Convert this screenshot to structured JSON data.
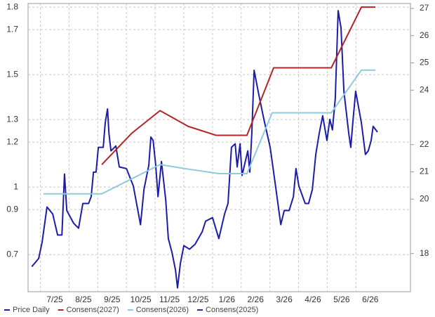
{
  "chart_data": {
    "type": "line",
    "xlim": [
      0.07,
      13.4
    ],
    "xticks": [
      {
        "value": 1,
        "label": "7/25"
      },
      {
        "value": 2,
        "label": "8/25"
      },
      {
        "value": 3,
        "label": "9/25"
      },
      {
        "value": 4,
        "label": "10/25"
      },
      {
        "value": 5,
        "label": "11/25"
      },
      {
        "value": 6,
        "label": "12/25"
      },
      {
        "value": 7,
        "label": "1/26"
      },
      {
        "value": 8,
        "label": "2/26"
      },
      {
        "value": 9,
        "label": "3/26"
      },
      {
        "value": 10,
        "label": "4/26"
      },
      {
        "value": 11,
        "label": "5/26"
      },
      {
        "value": 12,
        "label": "6/26"
      }
    ],
    "ylim": [
      0.535,
      1.816
    ],
    "yticks": [
      0.7,
      0.9,
      1.0,
      1.2,
      1.3,
      1.5,
      1.7,
      1.8
    ],
    "y2lim": [
      16.6,
      27.18
    ],
    "y2ticks": [
      18,
      20,
      21,
      22,
      24,
      25,
      26,
      27
    ],
    "grid": true,
    "legend": "bottom",
    "series": [
      {
        "name": "Price Daily",
        "color": "#1c1ca8",
        "axis": "y2",
        "x": [
          0.2,
          0.44,
          0.56,
          0.73,
          0.93,
          1.1,
          1.25,
          1.34,
          1.42,
          1.66,
          1.83,
          1.98,
          2.18,
          2.27,
          2.35,
          2.44,
          2.52,
          2.69,
          2.76,
          2.84,
          2.89,
          2.96,
          3.13,
          3.25,
          3.5,
          3.74,
          3.99,
          4.11,
          4.28,
          4.35,
          4.43,
          4.52,
          4.6,
          4.72,
          4.87,
          4.96,
          5.09,
          5.21,
          5.28,
          5.38,
          5.5,
          5.7,
          5.89,
          6.14,
          6.26,
          6.5,
          6.72,
          6.92,
          7.04,
          7.16,
          7.29,
          7.36,
          7.46,
          7.53,
          7.73,
          7.8,
          7.87,
          7.95,
          8.02,
          8.09,
          8.29,
          8.51,
          8.68,
          8.88,
          9.0,
          9.17,
          9.32,
          9.41,
          9.51,
          9.73,
          9.85,
          9.98,
          10.1,
          10.22,
          10.34,
          10.49,
          10.59,
          10.68,
          10.78,
          10.88,
          10.98,
          11.08,
          11.25,
          11.32,
          11.39,
          11.49,
          11.69,
          11.83,
          11.93,
          12.03,
          12.1,
          12.25
        ],
        "values": [
          17.52,
          17.82,
          18.42,
          19.71,
          19.45,
          18.68,
          18.68,
          20.92,
          19.58,
          19.11,
          18.93,
          19.84,
          19.84,
          20.09,
          20.99,
          20.99,
          21.9,
          21.9,
          22.8,
          23.31,
          22.41,
          21.77,
          21.95,
          21.18,
          21.12,
          20.48,
          19.06,
          20.35,
          21.25,
          22.28,
          22.15,
          21.25,
          20.09,
          21.38,
          19.96,
          18.55,
          18.03,
          17.39,
          16.74,
          17.64,
          18.29,
          18.16,
          18.34,
          18.8,
          19.19,
          19.32,
          18.55,
          19.45,
          19.84,
          21.9,
          22.03,
          21.18,
          22.03,
          20.87,
          21.77,
          20.99,
          22.41,
          24.73,
          24.35,
          23.96,
          22.93,
          21.9,
          20.61,
          19.06,
          19.58,
          19.58,
          20.09,
          21.12,
          20.48,
          19.84,
          19.84,
          20.35,
          21.64,
          22.41,
          23.06,
          22.15,
          22.93,
          22.54,
          23.7,
          26.92,
          26.28,
          23.96,
          22.41,
          21.9,
          22.8,
          23.96,
          22.8,
          21.64,
          21.77,
          22.15,
          22.67,
          22.46
        ]
      },
      {
        "name": "Consens(2027)",
        "color": "#b02525",
        "x": [
          2.64,
          3.69,
          4.67,
          5.65,
          6.63,
          7.7,
          8.63,
          10.64,
          11.69,
          12.18
        ],
        "values": [
          1.1,
          1.24,
          1.34,
          1.27,
          1.23,
          1.23,
          1.53,
          1.53,
          1.8,
          1.8
        ]
      },
      {
        "name": "Consens(2026)",
        "color": "#8fc9dc",
        "x": [
          0.61,
          2.64,
          4.67,
          5.65,
          6.72,
          7.7,
          8.58,
          10.64,
          11.69,
          12.18
        ],
        "values": [
          0.97,
          0.97,
          1.1,
          1.08,
          1.06,
          1.06,
          1.33,
          1.33,
          1.52,
          1.52
        ]
      },
      {
        "name": "Consens(2025)",
        "color": "#2a2a9a"
      }
    ]
  }
}
